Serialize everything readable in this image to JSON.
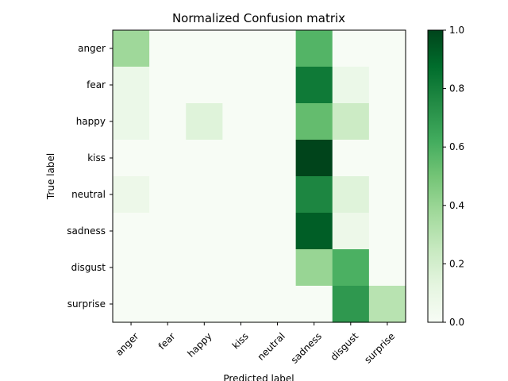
{
  "chart_data": {
    "type": "heatmap",
    "title": "Normalized Confusion matrix",
    "xlabel": "Predicted label",
    "ylabel": "True label",
    "x_categories": [
      "anger",
      "fear",
      "happy",
      "kiss",
      "neutral",
      "sadness",
      "disgust",
      "surprise"
    ],
    "y_categories": [
      "anger",
      "fear",
      "happy",
      "kiss",
      "neutral",
      "sadness",
      "disgust",
      "surprise"
    ],
    "values": [
      [
        0.38,
        0.0,
        0.0,
        0.0,
        0.0,
        0.58,
        0.0,
        0.0
      ],
      [
        0.08,
        0.0,
        0.0,
        0.0,
        0.0,
        0.82,
        0.08,
        0.0
      ],
      [
        0.08,
        0.0,
        0.15,
        0.0,
        0.0,
        0.54,
        0.23,
        0.0
      ],
      [
        0.0,
        0.0,
        0.0,
        0.0,
        0.0,
        1.0,
        0.0,
        0.0
      ],
      [
        0.07,
        0.0,
        0.0,
        0.0,
        0.0,
        0.77,
        0.15,
        0.0
      ],
      [
        0.0,
        0.0,
        0.0,
        0.0,
        0.0,
        0.92,
        0.07,
        0.0
      ],
      [
        0.0,
        0.0,
        0.0,
        0.0,
        0.0,
        0.4,
        0.6,
        0.0
      ],
      [
        0.0,
        0.0,
        0.0,
        0.0,
        0.0,
        0.0,
        0.7,
        0.3
      ]
    ],
    "colormap": "Greens",
    "colorbar": {
      "range": [
        0.0,
        1.0
      ],
      "ticks": [
        "0.0",
        "0.2",
        "0.4",
        "0.6",
        "0.8",
        "1.0"
      ]
    }
  }
}
